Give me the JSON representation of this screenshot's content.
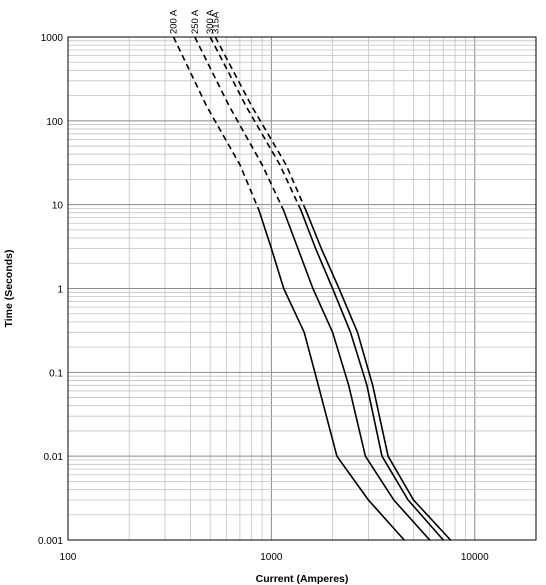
{
  "chart_data": {
    "type": "line",
    "xlabel": "Current (Amperes)",
    "ylabel": "Time (Seconds)",
    "xscale": "log",
    "yscale": "log",
    "xlim": [
      100,
      20000
    ],
    "ylim": [
      0.001,
      1000
    ],
    "grid": true,
    "x_ticks": [
      {
        "value": 100,
        "label": "100"
      },
      {
        "value": 1000,
        "label": "1000"
      },
      {
        "value": 10000,
        "label": "10000"
      }
    ],
    "y_ticks": [
      {
        "value": 1000,
        "label": "1000"
      },
      {
        "value": 100,
        "label": "100"
      },
      {
        "value": 10,
        "label": "10"
      },
      {
        "value": 1,
        "label": "1"
      },
      {
        "value": 0.1,
        "label": "0.1"
      },
      {
        "value": 0.01,
        "label": "0.01"
      },
      {
        "value": 0.001,
        "label": "0.001"
      }
    ],
    "series": [
      {
        "name": "200 A",
        "dashed_points": [
          [
            330,
            1000
          ],
          [
            480,
            150
          ],
          [
            700,
            30
          ],
          [
            870,
            8.5
          ]
        ],
        "solid_points": [
          [
            870,
            8.5
          ],
          [
            1000,
            3
          ],
          [
            1150,
            1
          ],
          [
            1450,
            0.3
          ],
          [
            1700,
            0.07
          ],
          [
            2100,
            0.01
          ],
          [
            3000,
            0.003
          ],
          [
            4500,
            0.001
          ]
        ]
      },
      {
        "name": "250 A",
        "dashed_points": [
          [
            420,
            1000
          ],
          [
            620,
            150
          ],
          [
            900,
            30
          ],
          [
            1150,
            8.5
          ]
        ],
        "solid_points": [
          [
            1150,
            8.5
          ],
          [
            1350,
            3
          ],
          [
            1600,
            1
          ],
          [
            2000,
            0.3
          ],
          [
            2400,
            0.07
          ],
          [
            2900,
            0.01
          ],
          [
            4000,
            0.003
          ],
          [
            6000,
            0.001
          ]
        ]
      },
      {
        "name": "300 A",
        "dashed_points": [
          [
            500,
            1000
          ],
          [
            750,
            150
          ],
          [
            1100,
            30
          ],
          [
            1400,
            8.5
          ]
        ],
        "solid_points": [
          [
            1400,
            8.5
          ],
          [
            1650,
            3
          ],
          [
            2000,
            1
          ],
          [
            2450,
            0.3
          ],
          [
            2950,
            0.07
          ],
          [
            3500,
            0.01
          ],
          [
            4700,
            0.003
          ],
          [
            7000,
            0.001
          ]
        ]
      },
      {
        "name": "315A",
        "dashed_points": [
          [
            530,
            1000
          ],
          [
            800,
            150
          ],
          [
            1180,
            30
          ],
          [
            1480,
            8.5
          ]
        ],
        "solid_points": [
          [
            1480,
            8.5
          ],
          [
            1760,
            3
          ],
          [
            2150,
            1
          ],
          [
            2650,
            0.3
          ],
          [
            3150,
            0.07
          ],
          [
            3750,
            0.01
          ],
          [
            5000,
            0.003
          ],
          [
            7600,
            0.001
          ]
        ]
      }
    ]
  }
}
